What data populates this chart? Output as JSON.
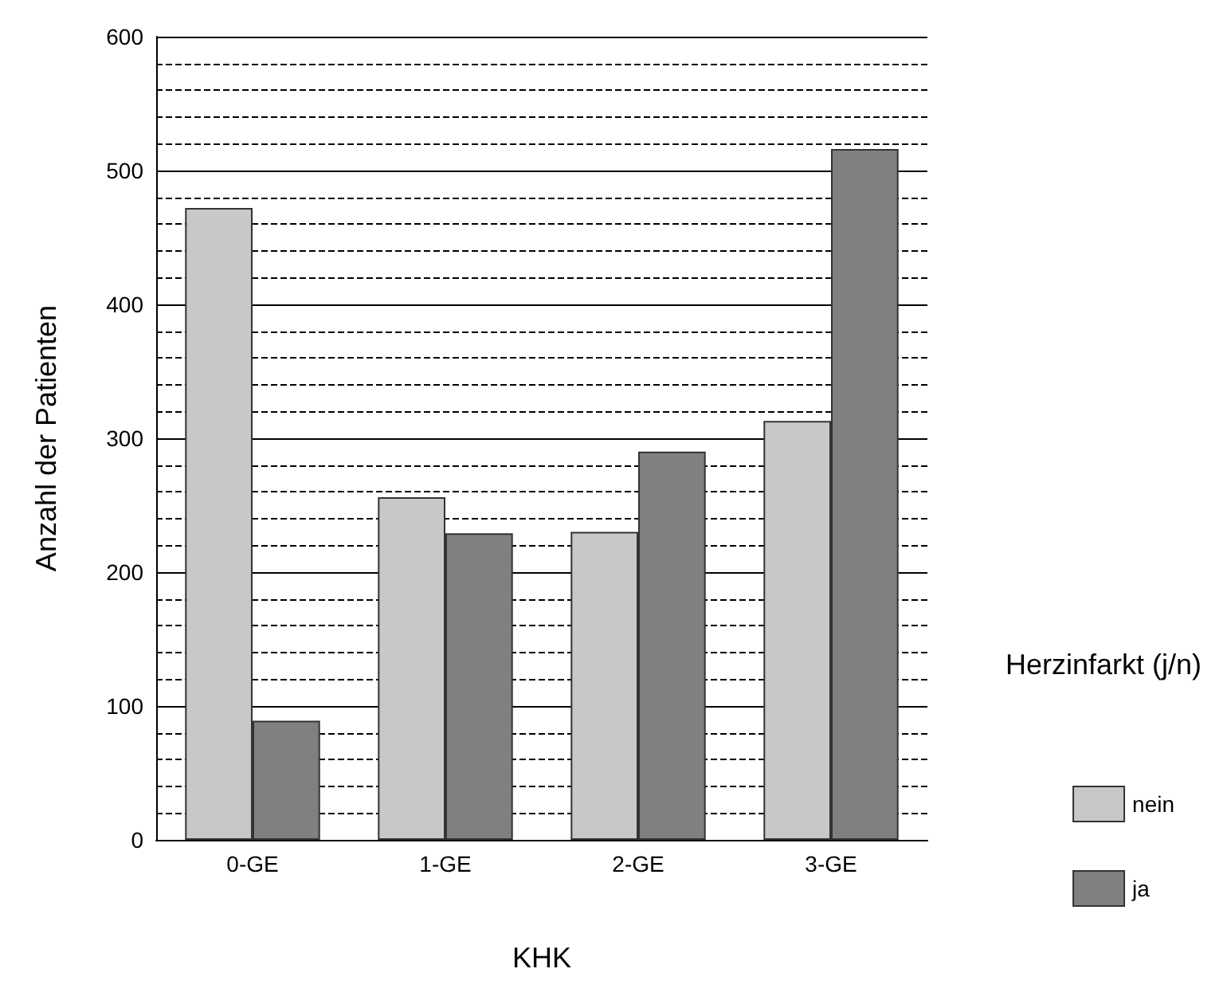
{
  "chart_data": {
    "type": "bar",
    "xlabel": "KHK",
    "ylabel": "Anzahl der Patienten",
    "legend_title": "Herzinfarkt (j/n)",
    "categories": [
      "0-GE",
      "1-GE",
      "2-GE",
      "3-GE"
    ],
    "series": [
      {
        "name": "nein",
        "color": "#c8c8c8",
        "values": [
          472,
          256,
          230,
          313
        ]
      },
      {
        "name": "ja",
        "color": "#808080",
        "values": [
          89,
          229,
          290,
          516
        ]
      }
    ],
    "ylim": [
      0,
      600
    ],
    "yticks": [
      0,
      100,
      200,
      300,
      400,
      500,
      600
    ],
    "grid": "y",
    "legend": "right"
  }
}
